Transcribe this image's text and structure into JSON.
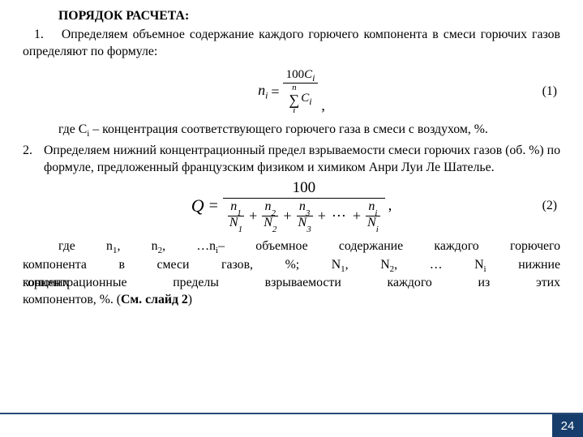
{
  "title": "ПОРЯДОК РАСЧЕТА:",
  "p1_num": "1.",
  "p1_text": "Определяем объемное содержание каждого горючего компонента в смеси горючих газов определяют по формуле:",
  "eq1_num": "(1)",
  "f1": {
    "lhs_n": "n",
    "lhs_i": "i",
    "eq": "=",
    "num_100": "100",
    "num_C": "C",
    "num_i": "i",
    "sum_n": "n",
    "sigma": "∑",
    "sum_i": "i",
    "den_C": "C",
    "den_i": "i",
    "comma": ","
  },
  "where1_a": "где С",
  "where1_sub": "i",
  "where1_b": " – концентрация соответствующего горючего газа в смеси с воздухом, %.",
  "p2_num": "2.",
  "p2_text": "Определяем нижний концентрационный предел взрываемости смеси горючих газов (об. %) по формуле, предложенный французским физиком и химиком Анри Луи Ле Шателье.",
  "eq2_num": "(2)",
  "f2": {
    "Q": "Q",
    "eq": "=",
    "num_100": "100",
    "terms": [
      {
        "n": "n",
        "nsub": "1",
        "N": "N",
        "Nsub": "1",
        "after": "+"
      },
      {
        "n": "n",
        "nsub": "2",
        "N": "N",
        "Nsub": "2",
        "after": "+"
      },
      {
        "n": "n",
        "nsub": "3",
        "N": "N",
        "Nsub": "3",
        "after": "dots"
      },
      {
        "n": "n",
        "nsub": "i",
        "N": "N",
        "Nsub": "i",
        "after": ""
      }
    ],
    "plus": "+",
    "dots": "⋯",
    "comma": ","
  },
  "where2": {
    "l1a": "где n",
    "s1": "1",
    "l1b": ",  n",
    "s2": "2",
    "l1c": ", …n",
    "si": "i",
    "l1d": "–       объемное   содержание каждого    горючего",
    "l2a": "компонента в    смеси                   газов,   %;  N",
    "Ns1": "1",
    "l2b": ", N",
    "Ns2": "2",
    "l2c": ", …  N",
    "Nsi": "i",
    "l2d": "       нижние",
    "over": "горючих",
    "l3": "концентрационные   пределы      взрываемости   каждого    из   этих",
    "l4a": "компонентов, %. (",
    "l4b": "См. слайд 2",
    "l4c": ")"
  },
  "page_number": "24",
  "colors": {
    "footer_line": "#2a4a7a",
    "page_box": "#163d6b",
    "text": "#000000"
  }
}
